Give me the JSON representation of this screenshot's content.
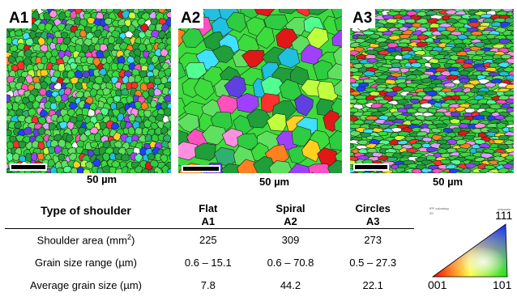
{
  "panels": [
    {
      "label": "A1",
      "scale_label": "50 µm"
    },
    {
      "label": "A2",
      "scale_label": "50 µm"
    },
    {
      "label": "A3",
      "scale_label": "50 µm"
    }
  ],
  "table": {
    "header_label": "Type of shoulder",
    "columns": [
      {
        "name": "Flat",
        "code": "A1"
      },
      {
        "name": "Spiral",
        "code": "A2"
      },
      {
        "name": "Circles",
        "code": "A3"
      }
    ],
    "rows": [
      {
        "label": "Shoulder area (mm",
        "label_sup": "2",
        "label_tail": ")",
        "values": [
          "225",
          "309",
          "273"
        ]
      },
      {
        "label": "Grain size range (µm)",
        "values": [
          "0.6 – 15.1",
          "0.6 – 70.8",
          "0.5 – 27.3"
        ]
      },
      {
        "label": "Average grain size (µm)",
        "values": [
          "7.8",
          "44.2",
          "22.1"
        ]
      }
    ]
  },
  "legend": {
    "caption_line1": "IPF colouring",
    "caption_line2": "Z0",
    "corner_note": "unknown",
    "vertex_top": "111",
    "vertex_left": "001",
    "vertex_right": "101"
  }
}
